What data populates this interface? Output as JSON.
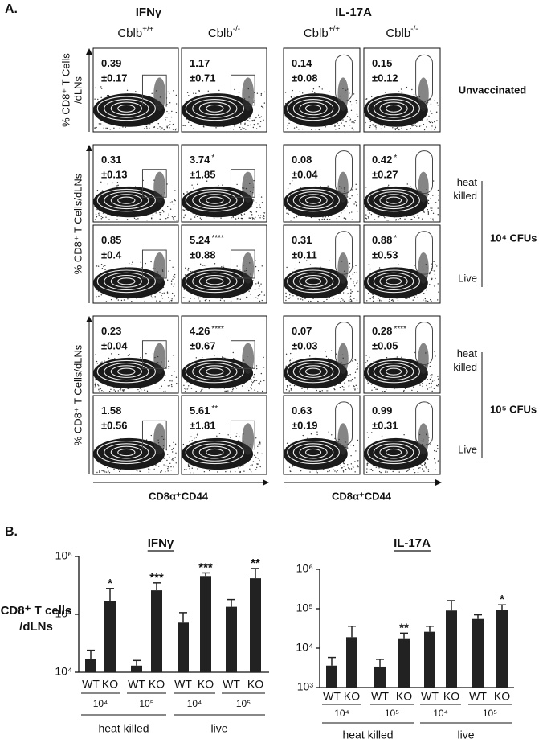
{
  "panel_a": {
    "label": "A.",
    "columns": [
      "IFNγ",
      "IL-17A"
    ],
    "genotypes": [
      {
        "name": "Cblb",
        "sup": "+/+"
      },
      {
        "name": "Cblb",
        "sup": "-/-"
      }
    ],
    "y_labels": [
      [
        "% CD8⁺ T Cells",
        "/dLNs"
      ],
      [
        "% CD8⁺ T Cells/dLNs"
      ],
      [
        "% CD8⁺ T Cells/dLNs"
      ]
    ],
    "x_label": "CD8α⁺CD44",
    "rows": [
      [
        {
          "mean": "0.39",
          "sd": "±0.17"
        },
        {
          "mean": "1.17",
          "sd": "±0.71"
        },
        {
          "mean": "0.14",
          "sd": "±0.08"
        },
        {
          "mean": "0.15",
          "sd": "±0.12"
        }
      ],
      [
        {
          "mean": "0.31",
          "sd": "±0.13"
        },
        {
          "mean": "3.74",
          "sd": "±1.85",
          "sig": "*"
        },
        {
          "mean": "0.08",
          "sd": "±0.04"
        },
        {
          "mean": "0.42",
          "sd": "±0.27",
          "sig": "*"
        }
      ],
      [
        {
          "mean": "0.85",
          "sd": "±0.4"
        },
        {
          "mean": "5.24",
          "sd": "±0.88",
          "sig": "****"
        },
        {
          "mean": "0.31",
          "sd": "±0.11"
        },
        {
          "mean": "0.88",
          "sd": "±0.53",
          "sig": "*"
        }
      ],
      [
        {
          "mean": "0.23",
          "sd": "±0.04"
        },
        {
          "mean": "4.26",
          "sd": "±0.67",
          "sig": "****"
        },
        {
          "mean": "0.07",
          "sd": "±0.03"
        },
        {
          "mean": "0.28",
          "sd": "±0.05",
          "sig": "****"
        }
      ],
      [
        {
          "mean": "1.58",
          "sd": "±0.56"
        },
        {
          "mean": "5.61",
          "sd": "±1.81",
          "sig": "**"
        },
        {
          "mean": "0.63",
          "sd": "±0.19"
        },
        {
          "mean": "0.99",
          "sd": "±0.31"
        }
      ]
    ],
    "unvaccinated": "Unvaccinated",
    "dose_groups": [
      {
        "conditions": [
          [
            "heat",
            "killed"
          ],
          [
            "Live"
          ]
        ],
        "dose": "10⁴ CFUs"
      },
      {
        "conditions": [
          [
            "heat",
            "killed"
          ],
          [
            "Live"
          ]
        ],
        "dose": "10⁵ CFUs"
      }
    ]
  },
  "panel_b_label": "B.",
  "chart_data": [
    {
      "type": "bar",
      "title": "IFNγ",
      "ylabel": [
        "CD8⁺ T cells",
        "/dLNs"
      ],
      "log_scale": true,
      "color": "#222222",
      "categories": [
        "WT",
        "KO",
        "WT",
        "KO",
        "WT",
        "KO",
        "WT",
        "KO"
      ],
      "values": [
        17000,
        170000,
        13000,
        260000,
        72000,
        460000,
        135000,
        420000
      ],
      "errors": [
        7000,
        110000,
        3000,
        90000,
        35000,
        60000,
        45000,
        200000
      ],
      "significance": [
        null,
        "*",
        null,
        "***",
        null,
        "***",
        null,
        "**"
      ],
      "groups": [
        "10⁴",
        "10⁵",
        "10⁴",
        "10⁵"
      ],
      "supergroups": [
        "heat killed",
        "live"
      ],
      "ylim": [
        10000,
        1000000
      ],
      "yticks": [
        {
          "value": 10000,
          "label": "10⁴"
        },
        {
          "value": 100000,
          "label": "10⁵"
        },
        {
          "value": 1000000,
          "label": "10⁶"
        }
      ]
    },
    {
      "type": "bar",
      "title": "IL-17A",
      "log_scale": true,
      "color": "#222222",
      "categories": [
        "WT",
        "KO",
        "WT",
        "KO",
        "WT",
        "KO",
        "WT",
        "KO"
      ],
      "values": [
        3600,
        19000,
        3400,
        17000,
        26000,
        90000,
        55000,
        95000
      ],
      "errors": [
        2200,
        17000,
        1800,
        7000,
        10000,
        70000,
        15000,
        30000
      ],
      "significance": [
        null,
        null,
        null,
        "**",
        null,
        null,
        null,
        "*"
      ],
      "groups": [
        "10⁴",
        "10⁵",
        "10⁴",
        "10⁵"
      ],
      "supergroups": [
        "heat killed",
        "live"
      ],
      "ylim": [
        1000,
        1000000
      ],
      "yticks": [
        {
          "value": 1000,
          "label": "10³"
        },
        {
          "value": 10000,
          "label": "10⁴"
        },
        {
          "value": 100000,
          "label": "10⁵"
        },
        {
          "value": 1000000,
          "label": "10⁶"
        }
      ]
    }
  ]
}
